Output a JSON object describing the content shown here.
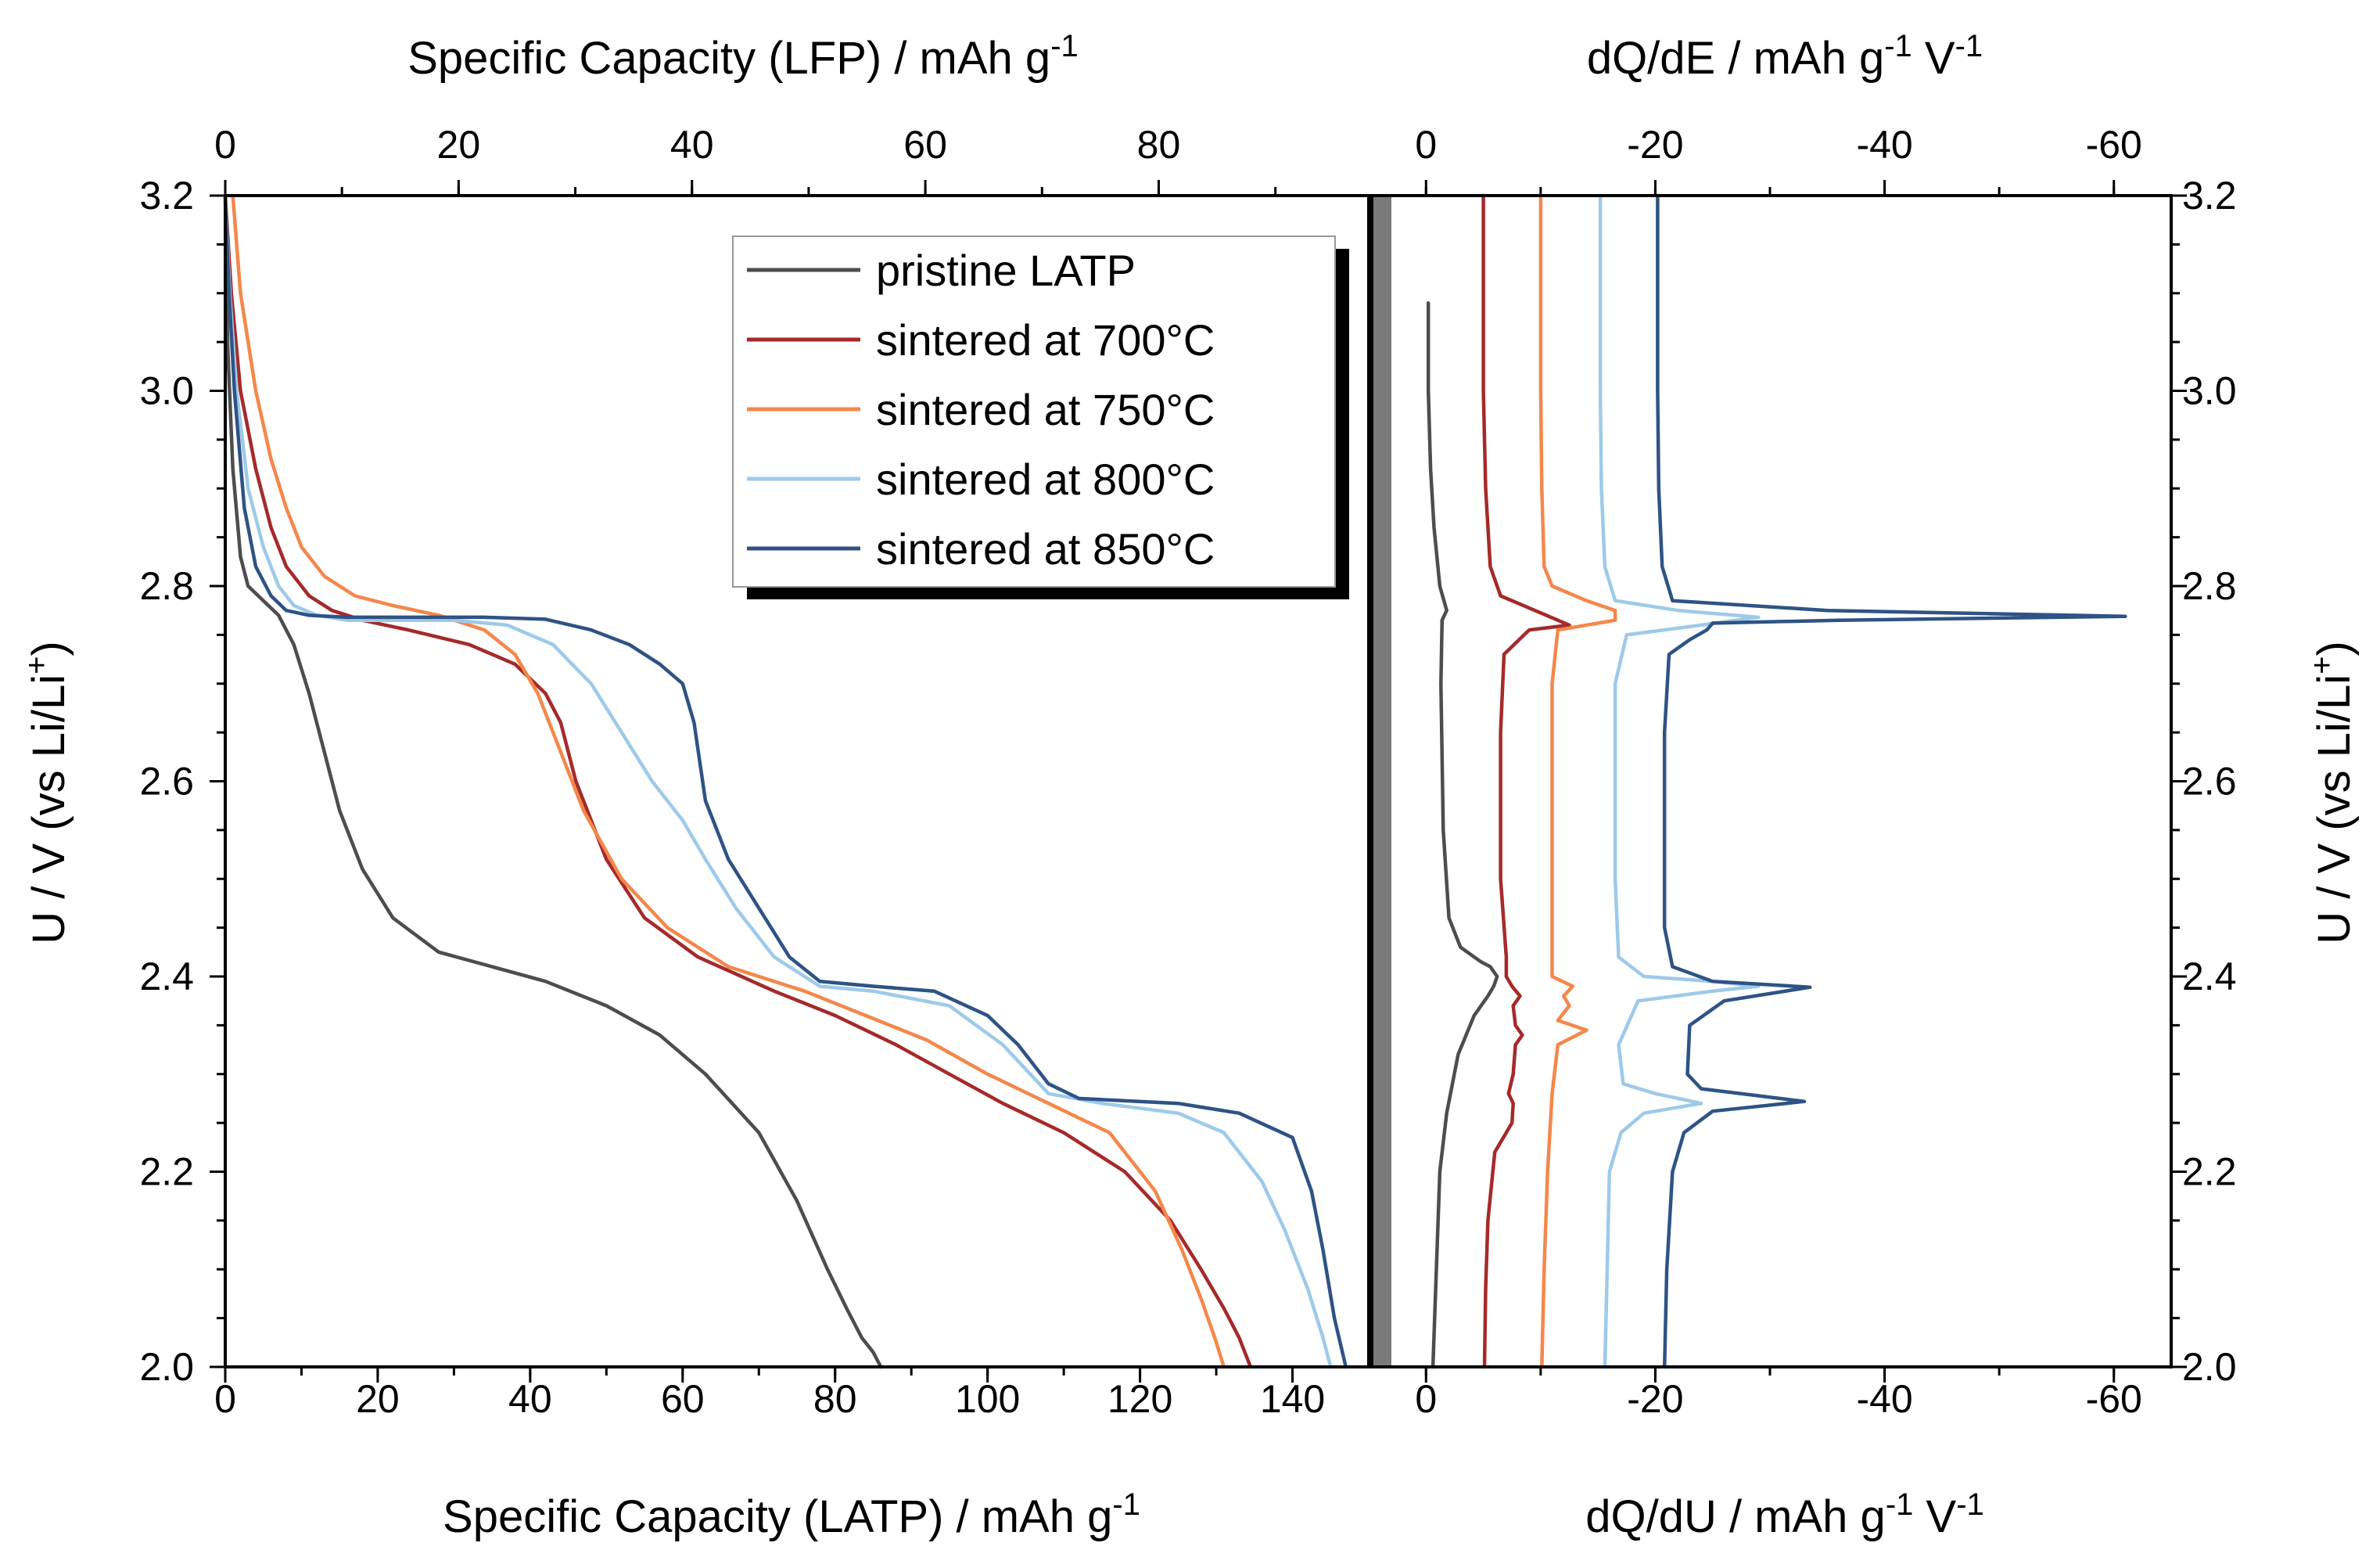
{
  "chart_data": [
    {
      "type": "line",
      "panel": "left",
      "xlabel_bottom": "Specific Capacity (LATP) / mAh g",
      "xlabel_bottom_sup": "-1",
      "xlabel_top": "Specific Capacity (LFP) / mAh g",
      "xlabel_top_sup": "-1",
      "ylabel": "U / V (vs Li/Li",
      "ylabel_sup": "+",
      "ylabel_end": ")",
      "xlim": [
        0,
        150
      ],
      "x_top_lim": [
        0,
        98
      ],
      "ylim": [
        2.0,
        3.2
      ],
      "xticks": [
        "0",
        "20",
        "40",
        "60",
        "80",
        "100",
        "120",
        "140"
      ],
      "x_top_ticks": [
        "0",
        "20",
        "40",
        "60",
        "80"
      ],
      "yticks": [
        "2.0",
        "2.2",
        "2.4",
        "2.6",
        "2.8",
        "3.0",
        "3.2"
      ],
      "legend_position": "top-right",
      "series": [
        {
          "name": "pristine LATP",
          "color": "#4d4d4d",
          "x": [
            0,
            0.3,
            1,
            2,
            3,
            5,
            7,
            9,
            11,
            13,
            15,
            18,
            22,
            28,
            35,
            42,
            50,
            57,
            63,
            70,
            75,
            79,
            81.5,
            83.5,
            85,
            86
          ],
          "y": [
            3.2,
            3.05,
            2.92,
            2.83,
            2.8,
            2.785,
            2.77,
            2.74,
            2.69,
            2.63,
            2.57,
            2.51,
            2.46,
            2.425,
            2.41,
            2.395,
            2.37,
            2.34,
            2.3,
            2.24,
            2.17,
            2.1,
            2.06,
            2.03,
            2.015,
            2.0
          ]
        },
        {
          "name": "sintered at 700°C",
          "color": "#a52a2a",
          "x": [
            0,
            0.8,
            2,
            4,
            6,
            8,
            11,
            14,
            18,
            24,
            32,
            38,
            42,
            44,
            46,
            50,
            55,
            62,
            72,
            80,
            88,
            95,
            102,
            110,
            118,
            124,
            128,
            131,
            133,
            134.5
          ],
          "y": [
            3.2,
            3.1,
            3.0,
            2.92,
            2.86,
            2.82,
            2.79,
            2.775,
            2.765,
            2.755,
            2.74,
            2.72,
            2.69,
            2.66,
            2.6,
            2.52,
            2.46,
            2.42,
            2.385,
            2.36,
            2.33,
            2.3,
            2.27,
            2.24,
            2.2,
            2.15,
            2.1,
            2.06,
            2.03,
            2.0
          ]
        },
        {
          "name": "sintered at 750°C",
          "color": "#f4874b",
          "x": [
            1,
            2,
            4,
            6,
            8,
            10,
            13,
            17,
            22,
            28,
            34,
            38,
            41,
            44,
            47,
            52,
            58,
            66,
            76,
            84,
            92,
            100,
            108,
            116,
            122,
            125.5,
            128,
            129.8,
            131
          ],
          "y": [
            3.2,
            3.1,
            3.0,
            2.93,
            2.88,
            2.84,
            2.81,
            2.79,
            2.78,
            2.77,
            2.755,
            2.73,
            2.69,
            2.63,
            2.57,
            2.5,
            2.45,
            2.41,
            2.385,
            2.36,
            2.335,
            2.3,
            2.27,
            2.24,
            2.18,
            2.12,
            2.07,
            2.03,
            2.0
          ]
        },
        {
          "name": "sintered at 800°C",
          "color": "#9ecae9",
          "x": [
            0,
            0.6,
            1.5,
            3,
            5,
            7,
            9,
            12,
            16,
            22,
            30,
            37,
            43,
            48,
            52,
            56,
            60,
            63,
            67,
            72,
            78,
            85,
            95,
            102,
            108,
            115,
            125,
            131,
            136,
            139,
            142,
            144,
            145
          ],
          "y": [
            3.2,
            3.1,
            3.0,
            2.9,
            2.84,
            2.8,
            2.78,
            2.77,
            2.765,
            2.765,
            2.765,
            2.76,
            2.74,
            2.7,
            2.65,
            2.6,
            2.56,
            2.52,
            2.47,
            2.42,
            2.39,
            2.385,
            2.37,
            2.33,
            2.28,
            2.27,
            2.26,
            2.24,
            2.19,
            2.14,
            2.08,
            2.03,
            2.0
          ]
        },
        {
          "name": "sintered at 850°C",
          "color": "#2e5385",
          "x": [
            0,
            0.5,
            1.2,
            2.5,
            4,
            6,
            8,
            11,
            16,
            24,
            34,
            42,
            48,
            53,
            57,
            60,
            61.5,
            63,
            66,
            70,
            74,
            78,
            85,
            93,
            100,
            104,
            108,
            112,
            125,
            133,
            140,
            142.5,
            144,
            145.5,
            147
          ],
          "y": [
            3.2,
            3.1,
            3.0,
            2.88,
            2.82,
            2.79,
            2.775,
            2.77,
            2.768,
            2.768,
            2.768,
            2.766,
            2.755,
            2.74,
            2.72,
            2.7,
            2.66,
            2.58,
            2.52,
            2.47,
            2.42,
            2.395,
            2.39,
            2.385,
            2.36,
            2.33,
            2.29,
            2.275,
            2.27,
            2.26,
            2.235,
            2.18,
            2.12,
            2.05,
            2.0
          ]
        }
      ]
    },
    {
      "type": "line",
      "panel": "right",
      "xlabel_bottom": "dQ/dU / mAh g",
      "xlabel_bottom_sup": "-1",
      "xlabel_bottom_mid": " V",
      "xlabel_bottom_sup2": "-1",
      "xlabel_top": "dQ/dE / mAh g",
      "xlabel_top_sup": "-1",
      "xlabel_top_mid": " V",
      "xlabel_top_sup2": "-1",
      "ylabel": "U / V (vs Li/Li",
      "ylabel_sup": "+",
      "ylabel_end": ")",
      "xlim": [
        5,
        -65
      ],
      "ylim": [
        2.0,
        3.2
      ],
      "xticks": [
        "0",
        "-20",
        "-40",
        "-60"
      ],
      "x_top_ticks": [
        "0",
        "-20",
        "-40",
        "-60"
      ],
      "yticks": [
        "2.0",
        "2.2",
        "2.4",
        "2.6",
        "2.8",
        "3.0",
        "3.2"
      ],
      "series": [
        {
          "name": "pristine LATP",
          "color": "#4d4d4d",
          "x": [
            -0.2,
            -0.2,
            -0.4,
            -0.7,
            -1.2,
            -1.8,
            -1.4,
            -1.3,
            -1.5,
            -2,
            -3,
            -4.8,
            -5.6,
            -6.2,
            -5.9,
            -5.4,
            -4.2,
            -2.8,
            -1.8,
            -1.2,
            -0.9,
            -0.6
          ],
          "y": [
            3.09,
            3.0,
            2.92,
            2.86,
            2.8,
            2.775,
            2.765,
            2.7,
            2.55,
            2.46,
            2.43,
            2.415,
            2.41,
            2.4,
            2.39,
            2.38,
            2.36,
            2.32,
            2.26,
            2.2,
            2.1,
            2.0
          ]
        },
        {
          "name": "sintered at 700°C",
          "color": "#a52a2a",
          "x": [
            -5,
            -5,
            -5.2,
            -5.6,
            -6.5,
            -9.5,
            -12.5,
            -9,
            -6.8,
            -6.5,
            -6.5,
            -7,
            -7,
            -7.5,
            -8.2,
            -7.6,
            -7.8,
            -8.4,
            -7.8,
            -7.6,
            -7.2,
            -7.6,
            -7.5,
            -6,
            -5.4,
            -5.2,
            -5.1
          ],
          "y": [
            3.2,
            3.0,
            2.9,
            2.82,
            2.79,
            2.775,
            2.76,
            2.755,
            2.73,
            2.65,
            2.5,
            2.42,
            2.4,
            2.39,
            2.38,
            2.37,
            2.35,
            2.34,
            2.33,
            2.3,
            2.28,
            2.27,
            2.25,
            2.22,
            2.15,
            2.08,
            2.0
          ]
        },
        {
          "name": "sintered at 750°C",
          "color": "#f4874b",
          "x": [
            -10,
            -10,
            -10.1,
            -10.3,
            -11,
            -14,
            -16.5,
            -16.5,
            -11.5,
            -11,
            -11,
            -11,
            -12.8,
            -12,
            -12.5,
            -11.5,
            -14,
            -11.5,
            -11,
            -10.6,
            -10.3,
            -10.1
          ],
          "y": [
            3.2,
            3.0,
            2.9,
            2.82,
            2.8,
            2.785,
            2.775,
            2.765,
            2.755,
            2.7,
            2.55,
            2.4,
            2.39,
            2.38,
            2.37,
            2.355,
            2.345,
            2.33,
            2.28,
            2.2,
            2.1,
            2.0
          ]
        },
        {
          "name": "sintered at 800°C",
          "color": "#9ecae9",
          "x": [
            -15.2,
            -15.2,
            -15.3,
            -15.6,
            -16.5,
            -22,
            -29,
            -24,
            -17.5,
            -16.5,
            -16.5,
            -16.8,
            -19,
            -25,
            -29,
            -25,
            -18.5,
            -16.8,
            -17.2,
            -20,
            -24,
            -19,
            -17,
            -16,
            -15.8,
            -15.6
          ],
          "y": [
            3.2,
            3.0,
            2.9,
            2.82,
            2.785,
            2.775,
            2.768,
            2.76,
            2.75,
            2.7,
            2.5,
            2.42,
            2.4,
            2.395,
            2.39,
            2.385,
            2.375,
            2.33,
            2.29,
            2.28,
            2.27,
            2.26,
            2.24,
            2.2,
            2.1,
            2.0
          ]
        },
        {
          "name": "sintered at 850°C",
          "color": "#2e5385",
          "x": [
            -20.2,
            -20.2,
            -20.3,
            -20.6,
            -21.5,
            -35,
            -61,
            -36,
            -25,
            -24.5,
            -23,
            -21.2,
            -20.8,
            -20.8,
            -21.5,
            -25,
            -33.5,
            -26,
            -23,
            -22.8,
            -24,
            -33,
            -25,
            -22.5,
            -21.5,
            -21,
            -20.8
          ],
          "y": [
            3.2,
            3.0,
            2.9,
            2.82,
            2.785,
            2.775,
            2.769,
            2.765,
            2.762,
            2.755,
            2.745,
            2.73,
            2.65,
            2.45,
            2.41,
            2.395,
            2.389,
            2.375,
            2.35,
            2.3,
            2.285,
            2.272,
            2.262,
            2.24,
            2.2,
            2.1,
            2.0
          ]
        }
      ]
    }
  ]
}
